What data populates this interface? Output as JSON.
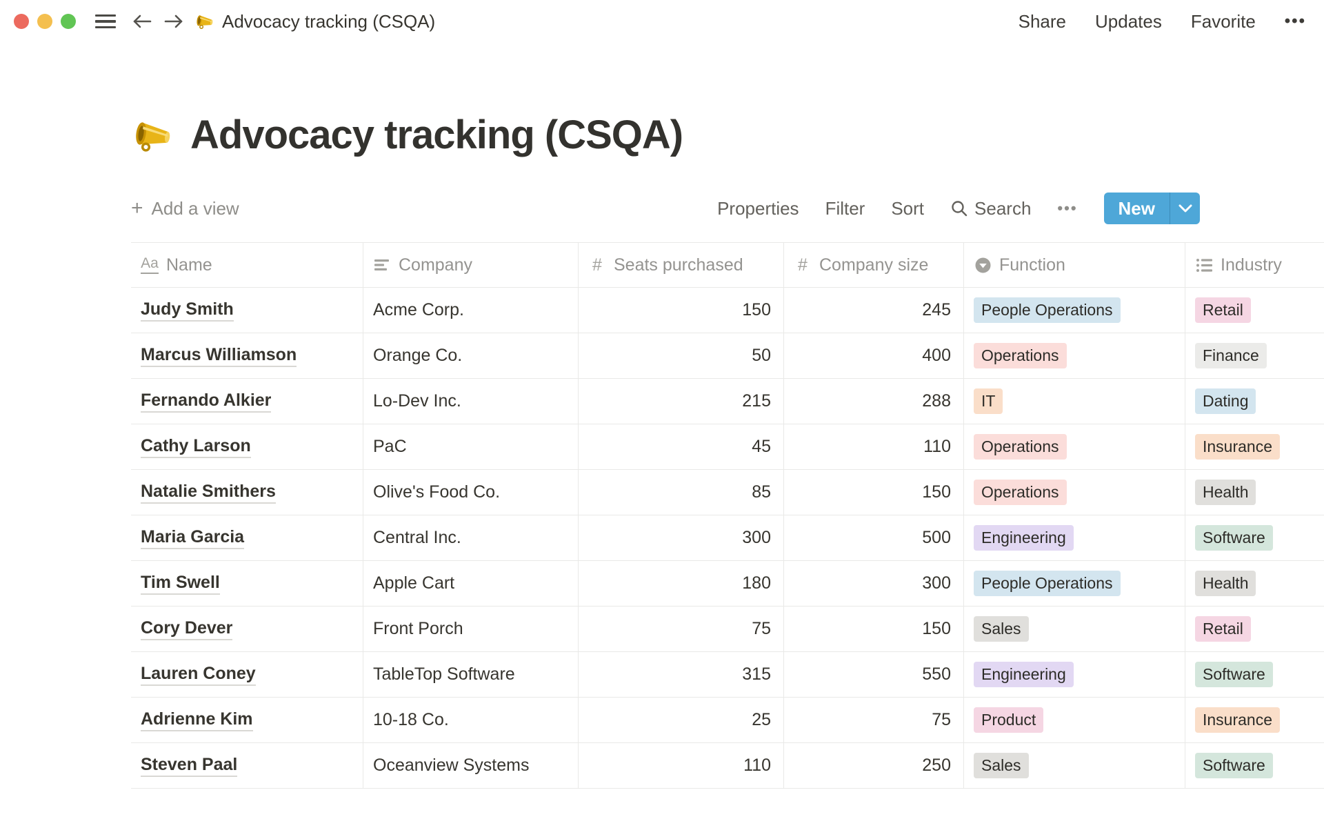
{
  "titlebar": {
    "doc_title": "Advocacy tracking (CSQA)",
    "share": "Share",
    "updates": "Updates",
    "favorite": "Favorite",
    "more": "•••"
  },
  "page": {
    "icon": "megaphone",
    "title": "Advocacy tracking (CSQA)"
  },
  "toolbar": {
    "add_view": "Add a view",
    "properties": "Properties",
    "filter": "Filter",
    "sort": "Sort",
    "search": "Search",
    "more": "•••",
    "new_label": "New"
  },
  "table": {
    "columns": [
      {
        "label": "Name",
        "icon": "title-icon",
        "type": "title"
      },
      {
        "label": "Company",
        "icon": "text-icon",
        "type": "text"
      },
      {
        "label": "Seats purchased",
        "icon": "number-icon",
        "type": "number"
      },
      {
        "label": "Company size",
        "icon": "number-icon",
        "type": "number"
      },
      {
        "label": "Function",
        "icon": "select-icon",
        "type": "select"
      },
      {
        "label": "Industry",
        "icon": "multi-select-icon",
        "type": "multi_select"
      }
    ],
    "rows": [
      {
        "name": "Judy Smith",
        "company": "Acme Corp.",
        "seats": "150",
        "company_size": "245",
        "function": {
          "label": "People Operations",
          "color": "blue"
        },
        "industry": {
          "label": "Retail",
          "color": "pink"
        }
      },
      {
        "name": "Marcus Williamson",
        "company": "Orange Co.",
        "seats": "50",
        "company_size": "400",
        "function": {
          "label": "Operations",
          "color": "red"
        },
        "industry": {
          "label": "Finance",
          "color": "lightgray"
        }
      },
      {
        "name": "Fernando Alkier",
        "company": "Lo-Dev Inc.",
        "seats": "215",
        "company_size": "288",
        "function": {
          "label": "IT",
          "color": "orange"
        },
        "industry": {
          "label": "Dating",
          "color": "blue"
        }
      },
      {
        "name": "Cathy Larson",
        "company": "PaC",
        "seats": "45",
        "company_size": "110",
        "function": {
          "label": "Operations",
          "color": "red"
        },
        "industry": {
          "label": "Insurance",
          "color": "orange"
        }
      },
      {
        "name": "Natalie Smithers",
        "company": "Olive's Food Co.",
        "seats": "85",
        "company_size": "150",
        "function": {
          "label": "Operations",
          "color": "red"
        },
        "industry": {
          "label": "Health",
          "color": "gray"
        }
      },
      {
        "name": "Maria Garcia",
        "company": "Central Inc.",
        "seats": "300",
        "company_size": "500",
        "function": {
          "label": "Engineering",
          "color": "purple"
        },
        "industry": {
          "label": "Software",
          "color": "green"
        }
      },
      {
        "name": "Tim Swell",
        "company": "Apple Cart",
        "seats": "180",
        "company_size": "300",
        "function": {
          "label": "People Operations",
          "color": "blue"
        },
        "industry": {
          "label": "Health",
          "color": "gray"
        }
      },
      {
        "name": "Cory Dever",
        "company": "Front Porch",
        "seats": "75",
        "company_size": "150",
        "function": {
          "label": "Sales",
          "color": "gray"
        },
        "industry": {
          "label": "Retail",
          "color": "pink"
        }
      },
      {
        "name": "Lauren Coney",
        "company": "TableTop Software",
        "seats": "315",
        "company_size": "550",
        "function": {
          "label": "Engineering",
          "color": "purple"
        },
        "industry": {
          "label": "Software",
          "color": "green"
        }
      },
      {
        "name": "Adrienne Kim",
        "company": "10-18 Co.",
        "seats": "25",
        "company_size": "75",
        "function": {
          "label": "Product",
          "color": "pink"
        },
        "industry": {
          "label": "Insurance",
          "color": "orange"
        }
      },
      {
        "name": "Steven Paal",
        "company": "Oceanview Systems",
        "seats": "110",
        "company_size": "250",
        "function": {
          "label": "Sales",
          "color": "gray"
        },
        "industry": {
          "label": "Software",
          "color": "green"
        }
      }
    ]
  },
  "colors": {
    "accent_blue": "#4EA7D8",
    "traffic_red": "#EC6A5E",
    "traffic_yellow": "#F4BF4F",
    "traffic_green": "#61C554",
    "tags": {
      "blue": "#D3E5EF",
      "red": "#FBDDDA",
      "orange": "#FADEC9",
      "pink": "#F5D6E3",
      "purple": "#E2D8F3",
      "green": "#D4E6DC",
      "gray": "#E0DFDC",
      "lightgray": "#EBEBE9"
    }
  }
}
